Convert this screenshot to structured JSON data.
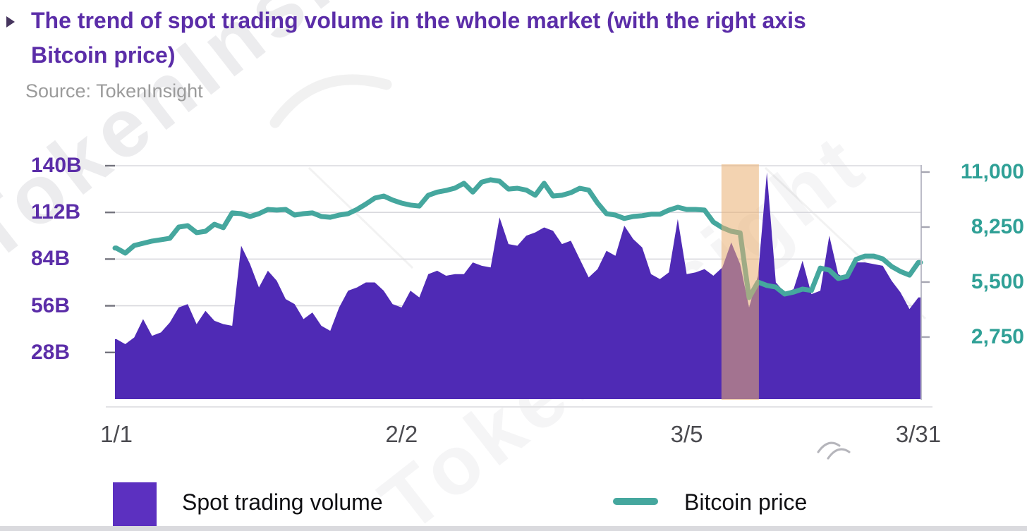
{
  "header": {
    "bullet": "triangle-right",
    "title_line1": "The trend of spot trading volume in the whole market (with the right axis",
    "title_line2": "Bitcoin price)",
    "source": "Source: TokenInsight"
  },
  "watermark": {
    "text": "TokenInsight"
  },
  "legend": {
    "items": [
      {
        "label": "Spot trading volume",
        "swatch": "square",
        "color": "#5c30c0"
      },
      {
        "label": "Bitcoin price",
        "swatch": "line",
        "color": "#45a79e"
      }
    ]
  },
  "chart_data": {
    "type": "combo-area-line",
    "title": "The trend of spot trading volume in the whole market (with the right axis Bitcoin price)",
    "source": "TokenInsight",
    "grid": true,
    "x": {
      "n_points": 91,
      "start": "1/1",
      "end": "3/31",
      "tick_labels": [
        "1/1",
        "2/2",
        "3/5",
        "3/31"
      ],
      "tick_point_index": [
        0,
        32,
        64,
        90
      ]
    },
    "y_left": {
      "label": "Spot trading volume",
      "unit": "B",
      "tick_labels": [
        "140B",
        "112B",
        "84B",
        "56B",
        "28B"
      ],
      "tick_values": [
        140,
        112,
        84,
        56,
        28
      ],
      "range": [
        0,
        140
      ],
      "color": "#5b2da8"
    },
    "y_right": {
      "label": "Bitcoin price",
      "unit": "USD",
      "tick_labels": [
        "11,000",
        "8,250",
        "5,500",
        "2,750"
      ],
      "tick_values": [
        11000,
        8250,
        5500,
        2750
      ],
      "range": [
        0,
        11000
      ],
      "color": "#2fa096"
    },
    "highlight_band": {
      "from_point": 67.9,
      "to_point": 72.1,
      "color": "#e9af71",
      "opacity": 0.55
    },
    "series": [
      {
        "name": "Spot trading volume",
        "type": "area",
        "axis": "left",
        "unit": "B",
        "color": "#4f2ab5",
        "values": [
          36,
          33,
          37,
          48,
          38,
          40,
          46,
          55,
          57,
          45,
          53,
          47,
          45,
          44,
          92,
          81,
          67,
          77,
          71,
          60,
          57,
          48,
          52,
          44,
          41,
          55,
          65,
          67,
          70,
          70,
          65,
          57,
          55,
          65,
          61,
          75,
          77,
          74,
          75,
          75,
          82,
          80,
          79,
          109,
          93,
          92,
          98,
          100,
          103,
          101,
          93,
          95,
          84,
          73,
          78,
          89,
          86,
          104,
          96,
          91,
          75,
          72,
          76,
          108,
          75,
          76,
          78,
          74,
          79,
          94,
          81,
          55,
          74,
          136,
          70,
          64,
          66,
          83,
          63,
          65,
          98,
          75,
          72,
          82,
          82,
          81,
          80,
          71,
          64,
          54,
          61
        ]
      },
      {
        "name": "Bitcoin price",
        "type": "line",
        "axis": "right",
        "unit": "USD",
        "color": "#45a79e",
        "values": [
          7200,
          6950,
          7330,
          7440,
          7550,
          7620,
          7690,
          8250,
          8320,
          7970,
          8040,
          8390,
          8220,
          8960,
          8920,
          8780,
          8920,
          9130,
          9100,
          9130,
          8850,
          8920,
          8960,
          8780,
          8740,
          8850,
          8920,
          9130,
          9400,
          9700,
          9800,
          9600,
          9450,
          9350,
          9300,
          9840,
          10000,
          10080,
          10200,
          10440,
          10000,
          10500,
          10615,
          10540,
          10150,
          10190,
          10100,
          9840,
          10440,
          9800,
          9840,
          9970,
          10190,
          10100,
          9450,
          8920,
          8850,
          8680,
          8780,
          8820,
          8890,
          8890,
          9100,
          9240,
          9130,
          9130,
          9100,
          8500,
          8220,
          8040,
          7960,
          4720,
          5500,
          5330,
          5250,
          4900,
          5000,
          5150,
          5080,
          6200,
          6100,
          5680,
          5780,
          6630,
          6800,
          6800,
          6660,
          6280,
          6030,
          5850,
          6480
        ]
      }
    ]
  }
}
